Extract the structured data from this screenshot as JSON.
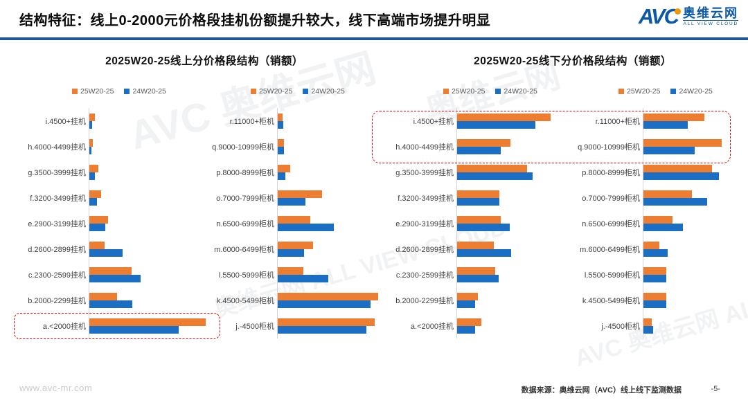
{
  "header": {
    "title": "结构特征：线上0-2000元价格段挂机份额提升较大，线下高端市场提升明显",
    "logo_text": "AVC",
    "logo_cn": "奥维云网",
    "logo_en": "ALL VIEW CLOUD"
  },
  "sections": [
    {
      "title": "2025W20-25线上分价格段结构（销额）"
    },
    {
      "title": "2025W20-25线下分价格段结构（销额）"
    }
  ],
  "legend": {
    "series1": "25W20-25",
    "series2": "24W20-25"
  },
  "colors": {
    "series1": "#ED7D31",
    "series2": "#1A6FC4",
    "header_rule": "#1F5597",
    "highlight_box": "#D90000",
    "logo_blue": "#0B57A8",
    "logo_orange": "#F39800"
  },
  "watermarks": [
    "AVC 奥维云网",
    "奥维云网 ALL VIEW CLOUD",
    "奥维云网",
    "AVC 奥维云网 ALL VIEW CLOUD"
  ],
  "footer": {
    "website": "www.avc-mr.com",
    "source": "数据来源：奥维云网（AVC）线上线下监测数据",
    "page": "-5-"
  },
  "chart_data": [
    {
      "type": "bar",
      "orientation": "horizontal",
      "group": "线上挂机",
      "title": "2025W20-25线上分价格段结构（销额）",
      "categories": [
        "i.4500+挂机",
        "h.4000-4499挂机",
        "g.3500-3999挂机",
        "f.3200-3499挂机",
        "e.2900-3199挂机",
        "d.2600-2899挂机",
        "c.2300-2599挂机",
        "b.2000-2299挂机",
        "a.<2000挂机"
      ],
      "series": [
        {
          "name": "25W20-25",
          "values": [
            0.9,
            0.6,
            1.5,
            1.9,
            3.1,
            2.5,
            6.9,
            4.5,
            19.0
          ]
        },
        {
          "name": "24W20-25",
          "values": [
            0.5,
            0.3,
            0.9,
            1.2,
            2.6,
            5.4,
            8.3,
            7.0,
            14.6
          ]
        }
      ],
      "xlabel": "",
      "ylabel": "",
      "unit": "share % (estimated, no numeric axis shown)",
      "xlim": [
        0,
        22
      ],
      "grid": false,
      "legend_position": "top"
    },
    {
      "type": "bar",
      "orientation": "horizontal",
      "group": "线上柜机",
      "title": "2025W20-25线上分价格段结构（销额）",
      "categories": [
        "r.11000+柜机",
        "q.9000-10999柜机",
        "p.8000-8999柜机",
        "o.7000-7999柜机",
        "n.6500-6999柜机",
        "m.6000-6499柜机",
        "l.5500-5999柜机",
        "k.4500-5499柜机",
        "j.-4500柜机"
      ],
      "series": [
        {
          "name": "25W20-25",
          "values": [
            0.8,
            1.0,
            2.1,
            7.3,
            5.4,
            5.8,
            4.2,
            16.5,
            16.0
          ]
        },
        {
          "name": "24W20-25",
          "values": [
            0.9,
            1.0,
            1.2,
            4.5,
            9.2,
            4.3,
            8.3,
            15.3,
            14.6
          ]
        }
      ],
      "xlabel": "",
      "ylabel": "",
      "unit": "share % (estimated, no numeric axis shown)",
      "xlim": [
        0,
        17.2
      ],
      "grid": false,
      "legend_position": "top"
    },
    {
      "type": "bar",
      "orientation": "horizontal",
      "group": "线下挂机",
      "title": "2025W20-25线下分价格段结构（销额）",
      "categories": [
        "i.4500+挂机",
        "h.4000-4499挂机",
        "g.3500-3999挂机",
        "f.3200-3499挂机",
        "e.2900-3199挂机",
        "d.2600-2899挂机",
        "c.2300-2599挂机",
        "b.2000-2299挂机",
        "a.<2000挂机"
      ],
      "series": [
        {
          "name": "25W20-25",
          "values": [
            11.9,
            6.8,
            8.9,
            5.4,
            5.5,
            4.7,
            4.8,
            2.6,
            3.1
          ]
        },
        {
          "name": "24W20-25",
          "values": [
            9.9,
            5.5,
            9.6,
            5.4,
            6.7,
            6.9,
            5.3,
            2.3,
            2.3
          ]
        }
      ],
      "xlabel": "",
      "ylabel": "",
      "unit": "share % (estimated, no numeric axis shown)",
      "xlim": [
        0,
        12.4
      ],
      "grid": false,
      "legend_position": "top"
    },
    {
      "type": "bar",
      "orientation": "horizontal",
      "group": "线下柜机",
      "title": "2025W20-25线下分价格段结构（销额）",
      "categories": [
        "r.11000+柜机",
        "q.9000-10999柜机",
        "p.8000-8999柜机",
        "o.7000-7999柜机",
        "n.6500-6999柜机",
        "m.6000-6499柜机",
        "l.5500-5999柜机",
        "k.4500-5499柜机",
        "j.-4500柜机"
      ],
      "series": [
        {
          "name": "25W20-25",
          "values": [
            7.9,
            10.1,
            8.9,
            6.3,
            3.8,
            2.1,
            3.0,
            3.0,
            1.1
          ]
        },
        {
          "name": "24W20-25",
          "values": [
            5.7,
            6.6,
            9.8,
            8.3,
            5.1,
            3.1,
            3.0,
            3.0,
            1.3
          ]
        }
      ],
      "xlabel": "",
      "ylabel": "",
      "unit": "share % (estimated, no numeric axis shown)",
      "xlim": [
        0,
        11.4
      ],
      "grid": false,
      "legend_position": "top"
    }
  ],
  "annotations": [
    {
      "target": "线上挂机 a.<2000 行",
      "style": "red dashed rounded box"
    },
    {
      "target": "线下 高端价格段（i/h 挂机，r/q 柜机）",
      "style": "red dashed rounded box"
    }
  ]
}
